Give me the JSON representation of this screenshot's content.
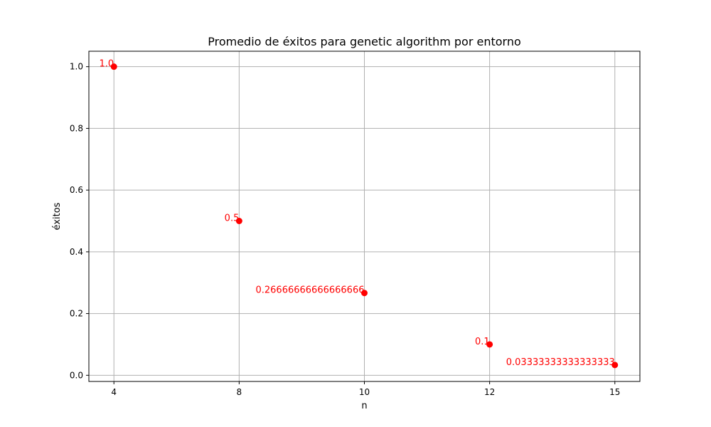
{
  "chart_data": {
    "type": "scatter",
    "title": "Promedio de éxitos para genetic algorithm por entorno",
    "xlabel": "n",
    "ylabel": "éxitos",
    "categories": [
      "4",
      "8",
      "10",
      "12",
      "15"
    ],
    "values": [
      1.0,
      0.5,
      0.26666666666666666,
      0.1,
      0.03333333333333333
    ],
    "data_labels": [
      "1.0",
      "0.5",
      "0.26666666666666666",
      "0.1",
      "0.03333333333333333"
    ],
    "ylim": [
      -0.02,
      1.05
    ],
    "yticks": [
      0.0,
      0.2,
      0.4,
      0.6,
      0.8,
      1.0
    ],
    "ytick_labels": [
      "0.0",
      "0.2",
      "0.4",
      "0.6",
      "0.8",
      "1.0"
    ],
    "grid": true,
    "colors": {
      "points": "#ff0000",
      "labels": "#ff0000",
      "grid": "#b0b0b0"
    }
  }
}
